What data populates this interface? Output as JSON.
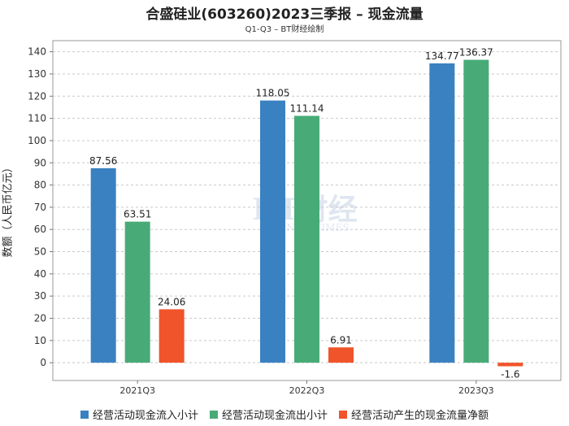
{
  "title": "合盛硅业(603260)2023三季报 – 现金流量",
  "subtitle": "Q1-Q3 – BT财经绘制",
  "watermark": {
    "brand": "BT财经",
    "sub": "BUSINESSTIMES"
  },
  "chart_data": {
    "type": "bar",
    "categories": [
      "2021Q3",
      "2022Q3",
      "2023Q3"
    ],
    "series": [
      {
        "name": "经营活动现金流入小计",
        "color": "#3a81c1",
        "values": [
          87.56,
          118.05,
          134.77
        ],
        "labels": [
          "87.56",
          "118.05",
          "134.77"
        ]
      },
      {
        "name": "经营活动现金流出小计",
        "color": "#48ab77",
        "values": [
          63.51,
          111.14,
          136.37
        ],
        "labels": [
          "63.51",
          "111.14",
          "136.37"
        ]
      },
      {
        "name": "经营活动产生的现金流量净额",
        "color": "#f0542a",
        "values": [
          24.06,
          6.91,
          -1.6
        ],
        "labels": [
          "24.06",
          "6.91",
          "-1.6"
        ]
      }
    ],
    "ylabel": "数额（人民币亿元）",
    "xlabel": "",
    "ylim": [
      -8,
      145
    ],
    "yticks": [
      0,
      10,
      20,
      30,
      40,
      50,
      60,
      70,
      80,
      90,
      100,
      110,
      120,
      130,
      140
    ],
    "grid": true,
    "legend_position": "bottom"
  }
}
